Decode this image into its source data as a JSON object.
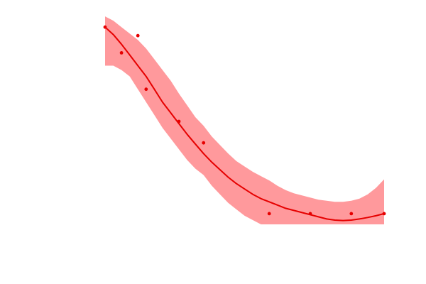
{
  "chart_data": {
    "type": "scatter",
    "title": "",
    "xlabel": "",
    "ylabel": "",
    "grid": false,
    "xlim": [
      0,
      17
    ],
    "ylim": [
      0,
      100
    ],
    "colors": {
      "points": "#e60000",
      "line": "#e60000",
      "band": "#ff999c"
    },
    "points": [
      {
        "x": 0,
        "y": 92
      },
      {
        "x": 1,
        "y": 80
      },
      {
        "x": 2,
        "y": 88
      },
      {
        "x": 2.5,
        "y": 63
      },
      {
        "x": 4.5,
        "y": 48
      },
      {
        "x": 6,
        "y": 38
      },
      {
        "x": 10,
        "y": 5
      },
      {
        "x": 12.5,
        "y": 5
      },
      {
        "x": 15,
        "y": 5
      },
      {
        "x": 17,
        "y": 5
      }
    ],
    "fit": {
      "x": [
        0,
        0.5,
        1,
        1.5,
        2,
        2.5,
        3,
        3.5,
        4,
        4.5,
        5,
        5.5,
        6,
        6.5,
        7,
        7.5,
        8,
        8.5,
        9,
        9.5,
        10,
        10.5,
        11,
        11.5,
        12,
        12.5,
        13,
        13.5,
        14,
        14.5,
        15,
        15.5,
        16,
        16.5,
        17
      ],
      "y": [
        92,
        88.5,
        84,
        79,
        74,
        69,
        63,
        57,
        52,
        47,
        42,
        37.5,
        33,
        29,
        25.5,
        22,
        19,
        16.5,
        14,
        12,
        10.5,
        9,
        7.5,
        6.5,
        5.5,
        4.5,
        3.5,
        2.5,
        2,
        1.8,
        2,
        2.5,
        3.2,
        4,
        5
      ],
      "upper": [
        97,
        95,
        92,
        89,
        86,
        82,
        77,
        72,
        67,
        61,
        55.5,
        50,
        46,
        41,
        37,
        33,
        29.5,
        27,
        24.5,
        22.5,
        20.5,
        18,
        16,
        14.5,
        13.5,
        12.5,
        11.5,
        11,
        10.5,
        10.5,
        11,
        12,
        14,
        17,
        21
      ],
      "lower": [
        74,
        74,
        72,
        69,
        63,
        57,
        51,
        45,
        40,
        35,
        30,
        26,
        23,
        18,
        14,
        10,
        7,
        4,
        2,
        0,
        -2,
        -3,
        -4,
        -5,
        -6,
        -7,
        -7,
        -7,
        -7,
        -7,
        -7,
        -7,
        -7,
        -7,
        -7
      ]
    }
  }
}
